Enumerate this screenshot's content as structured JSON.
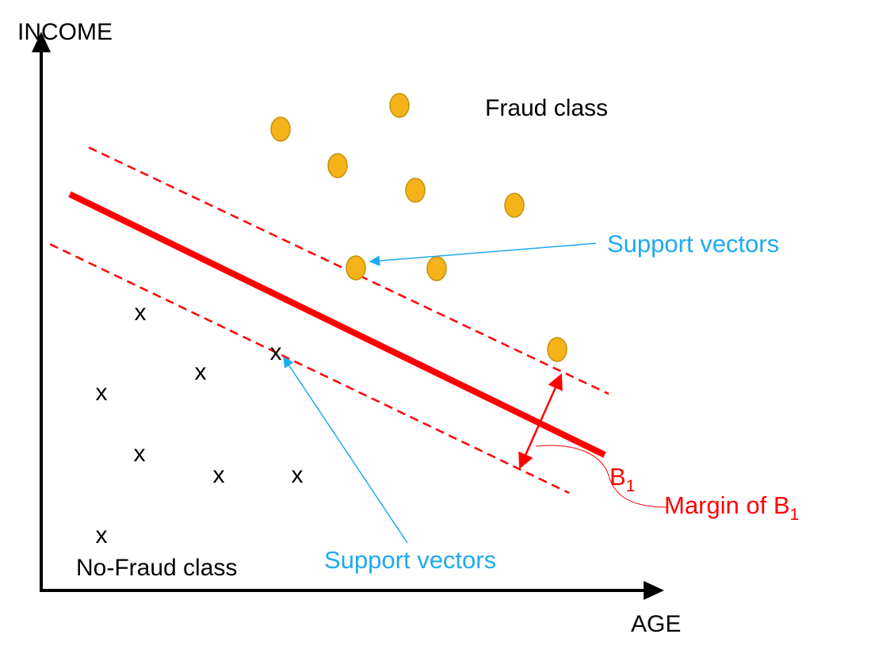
{
  "axes": {
    "y_label": "INCOME",
    "x_label": "AGE"
  },
  "classes": {
    "fraud_label": "Fraud class",
    "no_fraud_label": "No-Fraud class",
    "no_fraud_marker": "x"
  },
  "annotations": {
    "support_vectors_top": "Support vectors",
    "support_vectors_bottom": "Support vectors",
    "boundary_name": "B",
    "boundary_subscript": "1",
    "margin_text": "Margin of B",
    "margin_subscript": "1"
  },
  "colors": {
    "boundary": "#ff0000",
    "annotation_red": "#ff0000",
    "annotation_blue": "#1eaaf1",
    "fraud_point_fill": "#f5b31a",
    "fraud_point_stroke": "#c8900a",
    "axis": "#000000"
  }
}
